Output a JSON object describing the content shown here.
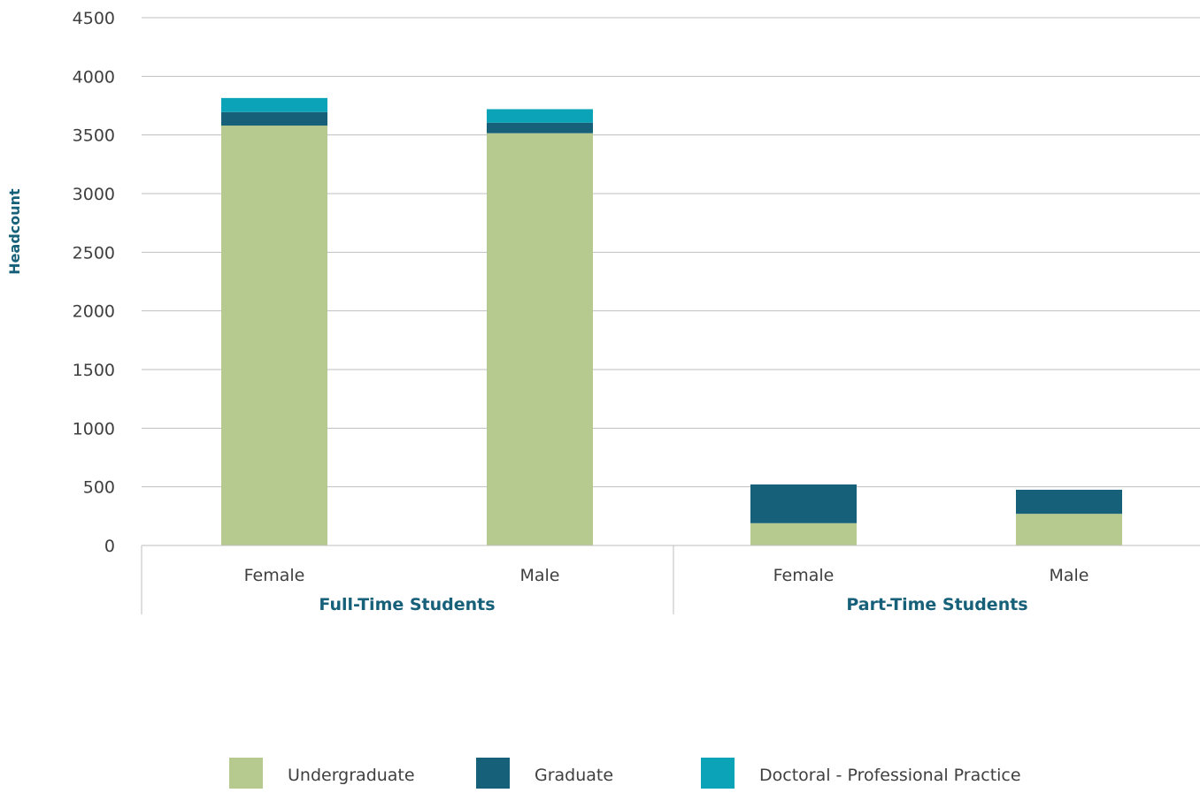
{
  "chart_data": {
    "type": "bar",
    "stacked": true,
    "title": "",
    "ylabel": "Headcount",
    "xlabel": "",
    "ylim": [
      0,
      4500
    ],
    "yticks": [
      0,
      500,
      1000,
      1500,
      2000,
      2500,
      3000,
      3500,
      4000,
      4500
    ],
    "grid": true,
    "legend_position": "bottom",
    "groups": [
      {
        "label": "Full-Time Students",
        "categories": [
          "Female",
          "Male"
        ]
      },
      {
        "label": "Part-Time Students",
        "categories": [
          "Female",
          "Male"
        ]
      }
    ],
    "categories": [
      "Female",
      "Male",
      "Female",
      "Male"
    ],
    "series": [
      {
        "name": "Undergraduate",
        "color": "#b6c98f",
        "values": [
          3580,
          3515,
          190,
          270
        ]
      },
      {
        "name": "Graduate",
        "color": "#17607a",
        "values": [
          115,
          90,
          330,
          205
        ]
      },
      {
        "name": "Doctoral - Professional Practice",
        "color": "#0ba3b8",
        "values": [
          120,
          115,
          0,
          0
        ]
      }
    ]
  }
}
